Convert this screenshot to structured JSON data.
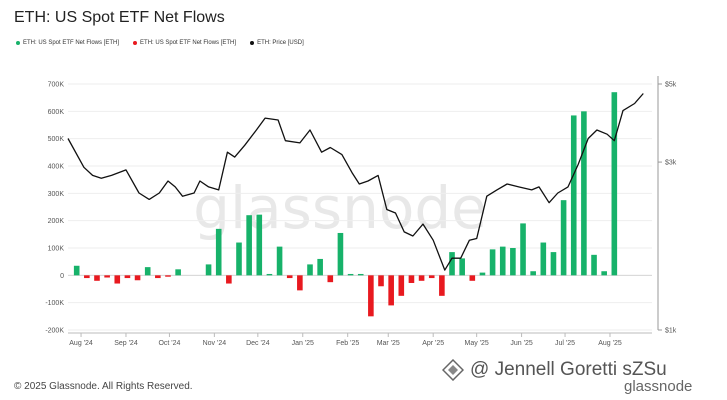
{
  "title": "ETH: US Spot ETF Net Flows",
  "footer": "© 2025 Glassnode. All Rights Reserved.",
  "watermark": {
    "center": "glassnode",
    "bottom_text": "@ Jennell Goretti sZSu",
    "bottom_logo": "glassnode",
    "icon": "diamond-logo-icon"
  },
  "colors": {
    "positive": "#17b26a",
    "negative": "#e8191f",
    "price": "#111111",
    "grid": "#eeeeee"
  },
  "legend": [
    {
      "label": "ETH: US Spot ETF Net Flows [ETH]",
      "color": "#17b26a"
    },
    {
      "label": "ETH: US Spot ETF Net Flows [ETH]",
      "color": "#e8191f"
    },
    {
      "label": "ETH: Price [USD]",
      "color": "#111111"
    }
  ],
  "chart_data": {
    "type": "bar",
    "title": "ETH: US Spot ETF Net Flows",
    "x_start": "2024-07-23",
    "x_end": "2025-08-30",
    "x_ticks": [
      {
        "date": "2024-08-01",
        "label": "Aug '24"
      },
      {
        "date": "2024-09-01",
        "label": "Sep '24"
      },
      {
        "date": "2024-10-01",
        "label": "Oct '24"
      },
      {
        "date": "2024-11-01",
        "label": "Nov '24"
      },
      {
        "date": "2024-12-01",
        "label": "Dec '24"
      },
      {
        "date": "2025-01-01",
        "label": "Jan '25"
      },
      {
        "date": "2025-02-01",
        "label": "Feb '25"
      },
      {
        "date": "2025-03-01",
        "label": "Mar '25"
      },
      {
        "date": "2025-04-01",
        "label": "Apr '25"
      },
      {
        "date": "2025-05-01",
        "label": "May '25"
      },
      {
        "date": "2025-06-01",
        "label": "Jun '25"
      },
      {
        "date": "2025-07-01",
        "label": "Jul '25"
      },
      {
        "date": "2025-08-01",
        "label": "Aug '25"
      }
    ],
    "y_left": {
      "min": -200000,
      "max": 700000,
      "ticks": [
        {
          "v": -200000,
          "label": "-200K"
        },
        {
          "v": -100000,
          "label": "-100K"
        },
        {
          "v": 0,
          "label": "0"
        },
        {
          "v": 100000,
          "label": "100K"
        },
        {
          "v": 200000,
          "label": "200K"
        },
        {
          "v": 300000,
          "label": "300K"
        },
        {
          "v": 400000,
          "label": "400K"
        },
        {
          "v": 500000,
          "label": "500K"
        },
        {
          "v": 600000,
          "label": "600K"
        },
        {
          "v": 700000,
          "label": "700K"
        }
      ]
    },
    "y_right": {
      "scale": "log",
      "min": 1000,
      "max": 5000,
      "ticks": [
        {
          "v": 5000,
          "label": "$5k"
        },
        {
          "v": 3000,
          "label": "$3k"
        },
        {
          "v": 1000,
          "label": "$1k"
        }
      ]
    },
    "flows": [
      {
        "week": "2024-07-29",
        "value": 35000
      },
      {
        "week": "2024-08-05",
        "value": -10000
      },
      {
        "week": "2024-08-12",
        "value": -20000
      },
      {
        "week": "2024-08-19",
        "value": -8000
      },
      {
        "week": "2024-08-26",
        "value": -30000
      },
      {
        "week": "2024-09-02",
        "value": -10000
      },
      {
        "week": "2024-09-09",
        "value": -18000
      },
      {
        "week": "2024-09-16",
        "value": 30000
      },
      {
        "week": "2024-09-23",
        "value": -10000
      },
      {
        "week": "2024-09-30",
        "value": -5000
      },
      {
        "week": "2024-10-07",
        "value": 22000
      },
      {
        "week": "2024-10-14",
        "value": 0
      },
      {
        "week": "2024-10-21",
        "value": 0
      },
      {
        "week": "2024-10-28",
        "value": 40000
      },
      {
        "week": "2024-11-04",
        "value": 170000
      },
      {
        "week": "2024-11-11",
        "value": -30000
      },
      {
        "week": "2024-11-18",
        "value": 120000
      },
      {
        "week": "2024-11-25",
        "value": 220000
      },
      {
        "week": "2024-12-02",
        "value": 222000
      },
      {
        "week": "2024-12-09",
        "value": 5000
      },
      {
        "week": "2024-12-16",
        "value": 105000
      },
      {
        "week": "2024-12-23",
        "value": -10000
      },
      {
        "week": "2024-12-30",
        "value": -55000
      },
      {
        "week": "2025-01-06",
        "value": 40000
      },
      {
        "week": "2025-01-13",
        "value": 60000
      },
      {
        "week": "2025-01-20",
        "value": -25000
      },
      {
        "week": "2025-01-27",
        "value": 155000
      },
      {
        "week": "2025-02-03",
        "value": 5000
      },
      {
        "week": "2025-02-10",
        "value": 5000
      },
      {
        "week": "2025-02-17",
        "value": -150000
      },
      {
        "week": "2025-02-24",
        "value": -40000
      },
      {
        "week": "2025-03-03",
        "value": -110000
      },
      {
        "week": "2025-03-10",
        "value": -75000
      },
      {
        "week": "2025-03-17",
        "value": -28000
      },
      {
        "week": "2025-03-24",
        "value": -20000
      },
      {
        "week": "2025-03-31",
        "value": -10000
      },
      {
        "week": "2025-04-07",
        "value": -75000
      },
      {
        "week": "2025-04-14",
        "value": 85000
      },
      {
        "week": "2025-04-21",
        "value": 62000
      },
      {
        "week": "2025-04-28",
        "value": -20000
      },
      {
        "week": "2025-05-05",
        "value": 10000
      },
      {
        "week": "2025-05-12",
        "value": 95000
      },
      {
        "week": "2025-05-19",
        "value": 105000
      },
      {
        "week": "2025-05-26",
        "value": 100000
      },
      {
        "week": "2025-06-02",
        "value": 190000
      },
      {
        "week": "2025-06-09",
        "value": 15000
      },
      {
        "week": "2025-06-16",
        "value": 120000
      },
      {
        "week": "2025-06-23",
        "value": 85000
      },
      {
        "week": "2025-06-30",
        "value": 275000
      },
      {
        "week": "2025-07-07",
        "value": 585000
      },
      {
        "week": "2025-07-14",
        "value": 600000
      },
      {
        "week": "2025-07-21",
        "value": 75000
      },
      {
        "week": "2025-07-28",
        "value": 15000
      },
      {
        "week": "2025-08-04",
        "value": 670000
      }
    ],
    "price": [
      {
        "date": "2024-07-23",
        "v": 3500
      },
      {
        "date": "2024-08-03",
        "v": 2900
      },
      {
        "date": "2024-08-09",
        "v": 2750
      },
      {
        "date": "2024-08-15",
        "v": 2700
      },
      {
        "date": "2024-08-22",
        "v": 2750
      },
      {
        "date": "2024-09-01",
        "v": 2850
      },
      {
        "date": "2024-09-10",
        "v": 2450
      },
      {
        "date": "2024-09-17",
        "v": 2350
      },
      {
        "date": "2024-09-24",
        "v": 2450
      },
      {
        "date": "2024-09-30",
        "v": 2650
      },
      {
        "date": "2024-10-05",
        "v": 2550
      },
      {
        "date": "2024-10-10",
        "v": 2400
      },
      {
        "date": "2024-10-18",
        "v": 2450
      },
      {
        "date": "2024-10-22",
        "v": 2650
      },
      {
        "date": "2024-10-28",
        "v": 2550
      },
      {
        "date": "2024-11-04",
        "v": 2500
      },
      {
        "date": "2024-11-10",
        "v": 3200
      },
      {
        "date": "2024-11-15",
        "v": 3100
      },
      {
        "date": "2024-11-22",
        "v": 3350
      },
      {
        "date": "2024-11-30",
        "v": 3700
      },
      {
        "date": "2024-12-06",
        "v": 4000
      },
      {
        "date": "2024-12-15",
        "v": 3950
      },
      {
        "date": "2024-12-20",
        "v": 3450
      },
      {
        "date": "2024-12-30",
        "v": 3400
      },
      {
        "date": "2025-01-06",
        "v": 3700
      },
      {
        "date": "2025-01-14",
        "v": 3200
      },
      {
        "date": "2025-01-20",
        "v": 3300
      },
      {
        "date": "2025-01-28",
        "v": 3150
      },
      {
        "date": "2025-02-04",
        "v": 2800
      },
      {
        "date": "2025-02-09",
        "v": 2600
      },
      {
        "date": "2025-02-15",
        "v": 2650
      },
      {
        "date": "2025-02-22",
        "v": 2750
      },
      {
        "date": "2025-02-28",
        "v": 2200
      },
      {
        "date": "2025-03-06",
        "v": 2150
      },
      {
        "date": "2025-03-12",
        "v": 1900
      },
      {
        "date": "2025-03-18",
        "v": 1850
      },
      {
        "date": "2025-03-25",
        "v": 2000
      },
      {
        "date": "2025-04-01",
        "v": 1800
      },
      {
        "date": "2025-04-09",
        "v": 1480
      },
      {
        "date": "2025-04-14",
        "v": 1600
      },
      {
        "date": "2025-04-20",
        "v": 1600
      },
      {
        "date": "2025-04-26",
        "v": 1800
      },
      {
        "date": "2025-05-01",
        "v": 1820
      },
      {
        "date": "2025-05-08",
        "v": 2400
      },
      {
        "date": "2025-05-15",
        "v": 2500
      },
      {
        "date": "2025-05-22",
        "v": 2600
      },
      {
        "date": "2025-05-30",
        "v": 2550
      },
      {
        "date": "2025-06-08",
        "v": 2500
      },
      {
        "date": "2025-06-13",
        "v": 2550
      },
      {
        "date": "2025-06-20",
        "v": 2300
      },
      {
        "date": "2025-06-26",
        "v": 2450
      },
      {
        "date": "2025-07-03",
        "v": 2550
      },
      {
        "date": "2025-07-10",
        "v": 2950
      },
      {
        "date": "2025-07-17",
        "v": 3500
      },
      {
        "date": "2025-07-23",
        "v": 3700
      },
      {
        "date": "2025-07-30",
        "v": 3600
      },
      {
        "date": "2025-08-04",
        "v": 3450
      },
      {
        "date": "2025-08-10",
        "v": 4200
      },
      {
        "date": "2025-08-18",
        "v": 4400
      },
      {
        "date": "2025-08-24",
        "v": 4700
      }
    ]
  }
}
